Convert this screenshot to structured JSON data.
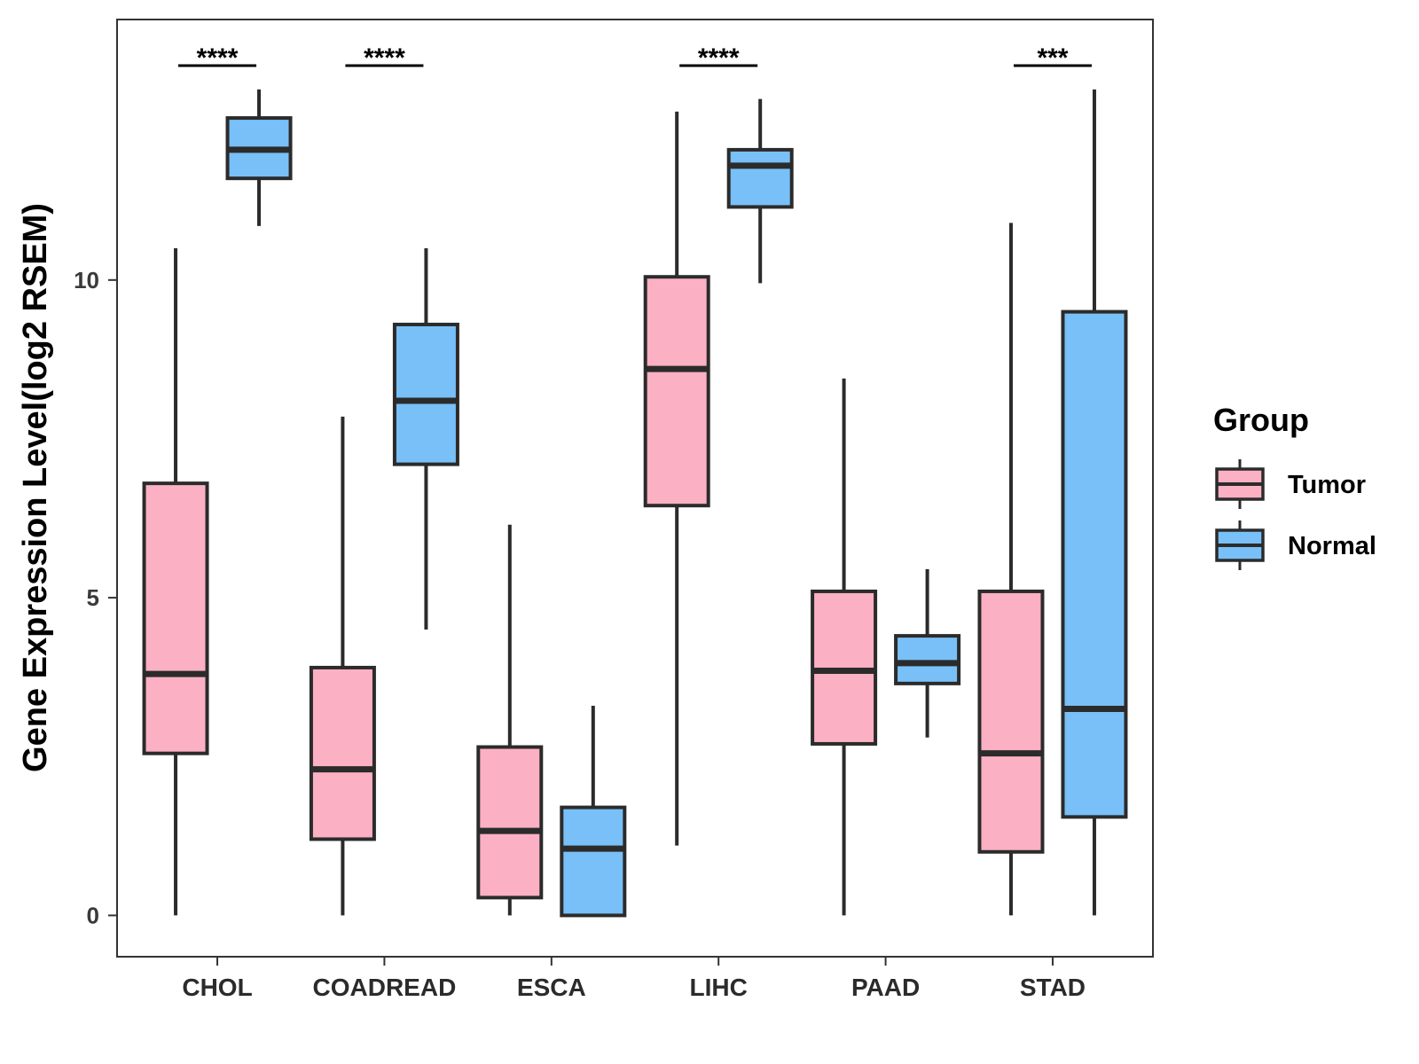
{
  "chart_data": {
    "type": "boxplot",
    "ylabel": "Gene Expression Level(log2 RSEM)",
    "xlabel": "",
    "ylim": [
      -0.65,
      14.1
    ],
    "yticks": [
      0,
      5,
      10
    ],
    "categories": [
      "CHOL",
      "COADREAD",
      "ESCA",
      "LIHC",
      "PAAD",
      "STAD"
    ],
    "legend": {
      "title": "Group",
      "position": "right",
      "entries": [
        {
          "name": "Tumor",
          "color": "#fbb0c3"
        },
        {
          "name": "Normal",
          "color": "#78c0f7"
        }
      ]
    },
    "series": [
      {
        "name": "Tumor",
        "color": "#fbb0c3",
        "boxes": [
          {
            "category": "CHOL",
            "min": 0.0,
            "q1": 2.55,
            "median": 3.8,
            "q3": 6.8,
            "max": 10.5
          },
          {
            "category": "COADREAD",
            "min": 0.0,
            "q1": 1.2,
            "median": 2.3,
            "q3": 3.9,
            "max": 7.85
          },
          {
            "category": "ESCA",
            "min": 0.0,
            "q1": 0.28,
            "median": 1.33,
            "q3": 2.65,
            "max": 6.15
          },
          {
            "category": "LIHC",
            "min": 1.1,
            "q1": 6.45,
            "median": 8.6,
            "q3": 10.05,
            "max": 12.65
          },
          {
            "category": "PAAD",
            "min": 0.0,
            "q1": 2.7,
            "median": 3.85,
            "q3": 5.1,
            "max": 8.45
          },
          {
            "category": "STAD",
            "min": 0.0,
            "q1": 1.0,
            "median": 2.55,
            "q3": 5.1,
            "max": 10.9
          }
        ]
      },
      {
        "name": "Normal",
        "color": "#78c0f7",
        "boxes": [
          {
            "category": "CHOL",
            "min": 10.85,
            "q1": 11.6,
            "median": 12.05,
            "q3": 12.55,
            "max": 13.0
          },
          {
            "category": "COADREAD",
            "min": 4.5,
            "q1": 7.1,
            "median": 8.1,
            "q3": 9.3,
            "max": 10.5
          },
          {
            "category": "ESCA",
            "min": 0.0,
            "q1": 0.0,
            "median": 1.05,
            "q3": 1.7,
            "max": 3.3
          },
          {
            "category": "LIHC",
            "min": 9.95,
            "q1": 11.15,
            "median": 11.8,
            "q3": 12.05,
            "max": 12.85
          },
          {
            "category": "PAAD",
            "min": 2.8,
            "q1": 3.65,
            "median": 3.97,
            "q3": 4.4,
            "max": 5.45
          },
          {
            "category": "STAD",
            "min": 0.0,
            "q1": 1.55,
            "median": 3.25,
            "q3": 9.5,
            "max": 13.0
          }
        ]
      }
    ],
    "significance": [
      {
        "category": "CHOL",
        "label": "****"
      },
      {
        "category": "COADREAD",
        "label": "****"
      },
      {
        "category": "ESCA",
        "label": ""
      },
      {
        "category": "LIHC",
        "label": "****"
      },
      {
        "category": "PAAD",
        "label": ""
      },
      {
        "category": "STAD",
        "label": "***"
      }
    ],
    "grid": false
  },
  "colors": {
    "outline": "#2b2b2b",
    "panel_border": "#333333"
  }
}
